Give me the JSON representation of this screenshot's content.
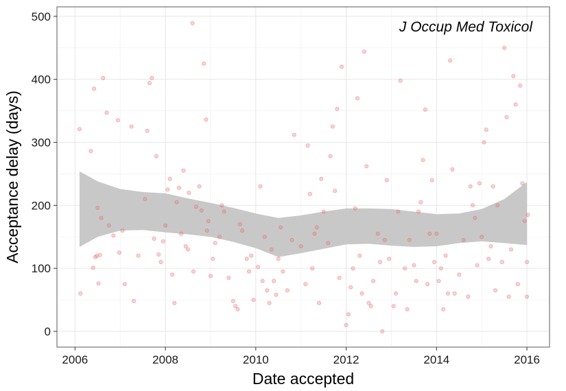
{
  "chart_data": {
    "type": "scatter",
    "annotation": "J Occup Med Toxicol",
    "xlabel": "Date accepted",
    "ylabel": "Acceptance delay (days)",
    "xlim": [
      2005.6,
      2016.5
    ],
    "ylim": [
      -25,
      515
    ],
    "x_ticks": [
      2006,
      2008,
      2010,
      2012,
      2014,
      2016
    ],
    "x_tick_labels": [
      "2006",
      "2008",
      "2010",
      "2012",
      "2014",
      "2016"
    ],
    "y_ticks": [
      0,
      100,
      200,
      300,
      400,
      500
    ],
    "y_tick_labels": [
      "0",
      "100",
      "200",
      "300",
      "400",
      "500"
    ],
    "grid": true,
    "point_color": "#e8696a",
    "band_color": "#c8c8c8",
    "points": [
      [
        2006.1,
        321
      ],
      [
        2006.12,
        60
      ],
      [
        2006.35,
        286
      ],
      [
        2006.4,
        101
      ],
      [
        2006.42,
        385
      ],
      [
        2006.45,
        118
      ],
      [
        2006.48,
        120
      ],
      [
        2006.5,
        196
      ],
      [
        2006.52,
        76
      ],
      [
        2006.55,
        121
      ],
      [
        2006.58,
        180
      ],
      [
        2006.62,
        402
      ],
      [
        2006.7,
        347
      ],
      [
        2006.75,
        168
      ],
      [
        2006.85,
        152
      ],
      [
        2006.95,
        335
      ],
      [
        2006.98,
        125
      ],
      [
        2007.05,
        160
      ],
      [
        2007.1,
        75
      ],
      [
        2007.25,
        325
      ],
      [
        2007.3,
        48
      ],
      [
        2007.4,
        120
      ],
      [
        2007.55,
        210
      ],
      [
        2007.6,
        318
      ],
      [
        2007.65,
        394
      ],
      [
        2007.7,
        402
      ],
      [
        2007.75,
        147
      ],
      [
        2007.8,
        278
      ],
      [
        2007.85,
        122
      ],
      [
        2007.9,
        110
      ],
      [
        2007.95,
        143
      ],
      [
        2008.0,
        168
      ],
      [
        2008.05,
        225
      ],
      [
        2008.1,
        242
      ],
      [
        2008.15,
        90
      ],
      [
        2008.2,
        45
      ],
      [
        2008.25,
        205
      ],
      [
        2008.3,
        228
      ],
      [
        2008.35,
        155
      ],
      [
        2008.4,
        255
      ],
      [
        2008.45,
        135
      ],
      [
        2008.5,
        130
      ],
      [
        2008.52,
        220
      ],
      [
        2008.6,
        489
      ],
      [
        2008.62,
        95
      ],
      [
        2008.68,
        198
      ],
      [
        2008.75,
        230
      ],
      [
        2008.8,
        192
      ],
      [
        2008.85,
        425
      ],
      [
        2008.9,
        336
      ],
      [
        2008.92,
        160
      ],
      [
        2008.95,
        175
      ],
      [
        2009.0,
        88
      ],
      [
        2009.05,
        115
      ],
      [
        2009.1,
        140
      ],
      [
        2009.2,
        150
      ],
      [
        2009.25,
        200
      ],
      [
        2009.3,
        190
      ],
      [
        2009.4,
        85
      ],
      [
        2009.5,
        48
      ],
      [
        2009.55,
        40
      ],
      [
        2009.6,
        35
      ],
      [
        2009.65,
        170
      ],
      [
        2009.7,
        160
      ],
      [
        2009.8,
        115
      ],
      [
        2009.85,
        95
      ],
      [
        2009.9,
        120
      ],
      [
        2009.95,
        50
      ],
      [
        2010.05,
        102
      ],
      [
        2010.1,
        230
      ],
      [
        2010.15,
        80
      ],
      [
        2010.2,
        150
      ],
      [
        2010.25,
        65
      ],
      [
        2010.3,
        45
      ],
      [
        2010.35,
        130
      ],
      [
        2010.4,
        80
      ],
      [
        2010.45,
        58
      ],
      [
        2010.5,
        115
      ],
      [
        2010.55,
        165
      ],
      [
        2010.6,
        95
      ],
      [
        2010.7,
        65
      ],
      [
        2010.8,
        145
      ],
      [
        2010.85,
        312
      ],
      [
        2011.0,
        135
      ],
      [
        2011.1,
        75
      ],
      [
        2011.15,
        295
      ],
      [
        2011.2,
        218
      ],
      [
        2011.25,
        100
      ],
      [
        2011.3,
        155
      ],
      [
        2011.35,
        165
      ],
      [
        2011.4,
        45
      ],
      [
        2011.45,
        242
      ],
      [
        2011.5,
        190
      ],
      [
        2011.6,
        140
      ],
      [
        2011.65,
        278
      ],
      [
        2011.7,
        325
      ],
      [
        2011.75,
        223
      ],
      [
        2011.8,
        353
      ],
      [
        2011.85,
        85
      ],
      [
        2011.9,
        420
      ],
      [
        2012.0,
        10
      ],
      [
        2012.05,
        27
      ],
      [
        2012.1,
        70
      ],
      [
        2012.15,
        100
      ],
      [
        2012.2,
        195
      ],
      [
        2012.25,
        370
      ],
      [
        2012.3,
        120
      ],
      [
        2012.35,
        60
      ],
      [
        2012.4,
        444
      ],
      [
        2012.45,
        262
      ],
      [
        2012.5,
        45
      ],
      [
        2012.55,
        40
      ],
      [
        2012.6,
        80
      ],
      [
        2012.7,
        155
      ],
      [
        2012.75,
        110
      ],
      [
        2012.8,
        0
      ],
      [
        2012.85,
        145
      ],
      [
        2012.9,
        240
      ],
      [
        2012.95,
        115
      ],
      [
        2013.05,
        40
      ],
      [
        2013.1,
        60
      ],
      [
        2013.15,
        190
      ],
      [
        2013.2,
        398
      ],
      [
        2013.3,
        100
      ],
      [
        2013.35,
        35
      ],
      [
        2013.4,
        145
      ],
      [
        2013.5,
        105
      ],
      [
        2013.55,
        80
      ],
      [
        2013.6,
        190
      ],
      [
        2013.65,
        205
      ],
      [
        2013.7,
        272
      ],
      [
        2013.75,
        352
      ],
      [
        2013.8,
        75
      ],
      [
        2013.85,
        155
      ],
      [
        2013.9,
        240
      ],
      [
        2013.95,
        110
      ],
      [
        2014.0,
        155
      ],
      [
        2014.05,
        80
      ],
      [
        2014.1,
        100
      ],
      [
        2014.15,
        35
      ],
      [
        2014.2,
        120
      ],
      [
        2014.25,
        60
      ],
      [
        2014.3,
        430
      ],
      [
        2014.35,
        257
      ],
      [
        2014.4,
        60
      ],
      [
        2014.5,
        90
      ],
      [
        2014.6,
        145
      ],
      [
        2014.7,
        55
      ],
      [
        2014.75,
        230
      ],
      [
        2014.8,
        200
      ],
      [
        2014.85,
        180
      ],
      [
        2014.9,
        105
      ],
      [
        2014.95,
        235
      ],
      [
        2015.0,
        150
      ],
      [
        2015.05,
        300
      ],
      [
        2015.1,
        320
      ],
      [
        2015.15,
        115
      ],
      [
        2015.2,
        135
      ],
      [
        2015.25,
        230
      ],
      [
        2015.3,
        65
      ],
      [
        2015.35,
        200
      ],
      [
        2015.45,
        110
      ],
      [
        2015.5,
        450
      ],
      [
        2015.55,
        340
      ],
      [
        2015.6,
        55
      ],
      [
        2015.65,
        130
      ],
      [
        2015.7,
        405
      ],
      [
        2015.75,
        360
      ],
      [
        2015.8,
        75
      ],
      [
        2015.85,
        390
      ],
      [
        2015.9,
        235
      ],
      [
        2015.95,
        175
      ],
      [
        2016.0,
        110
      ],
      [
        2016.02,
        185
      ],
      [
        2016.0,
        55
      ]
    ],
    "band_x": [
      2006.1,
      2006.5,
      2007.0,
      2007.5,
      2008.0,
      2008.5,
      2009.0,
      2009.5,
      2010.0,
      2010.5,
      2011.0,
      2011.5,
      2012.0,
      2012.5,
      2013.0,
      2013.5,
      2014.0,
      2014.5,
      2015.0,
      2015.5,
      2016.0
    ],
    "band_upper": [
      254,
      238,
      226,
      221,
      219,
      211,
      204,
      196,
      187,
      180,
      184,
      190,
      195,
      195,
      194,
      190,
      186,
      187,
      194,
      210,
      237
    ],
    "band_lower": [
      134,
      150,
      160,
      161,
      157,
      154,
      150,
      142,
      132,
      118,
      124,
      131,
      138,
      139,
      136,
      134,
      135,
      140,
      143,
      140,
      137
    ]
  }
}
